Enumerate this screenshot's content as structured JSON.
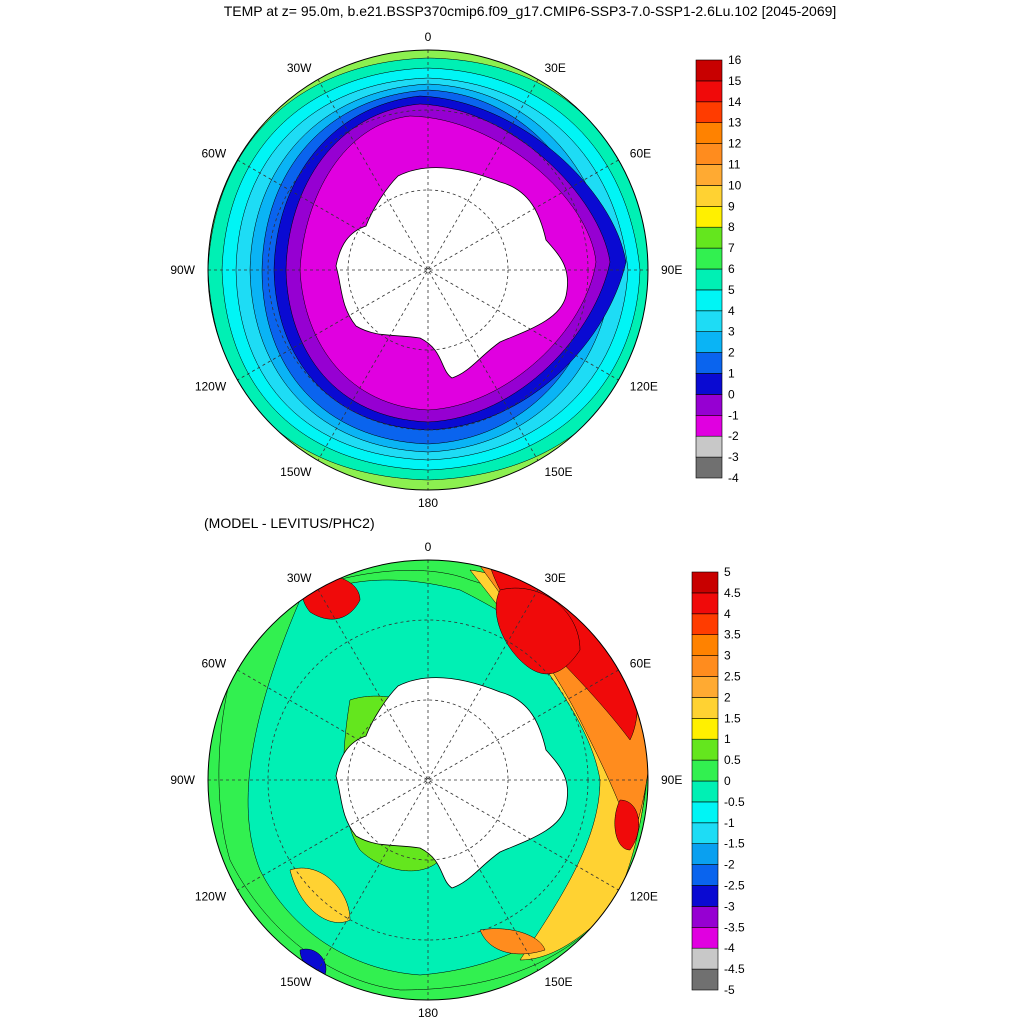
{
  "figure": {
    "title": "TEMP at z=  95.0m, b.e21.BSSP370cmip6.f09_g17.CMIP6-SSP3-7.0-SSP1-2.6Lu.102 [2045-2069]",
    "subtitle": "(MODEL - LEVITUS/PHC2)"
  },
  "longitude_labels": [
    "0",
    "30E",
    "60E",
    "90E",
    "120E",
    "150E",
    "180",
    "150W",
    "120W",
    "90W",
    "60W",
    "30W"
  ],
  "colorbar_top": {
    "colors": [
      "#707070",
      "#c8c8c8",
      "#e000e0",
      "#9600d2",
      "#0a0ad2",
      "#0a64ee",
      "#0ab4f5",
      "#1edcf5",
      "#00f5f5",
      "#00f0b4",
      "#32f050",
      "#64e61e",
      "#fff000",
      "#ffd232",
      "#ffaa32",
      "#ff8c1e",
      "#ff8200",
      "#ff3c00",
      "#f00a0a",
      "#c80000"
    ],
    "labels": [
      "-4",
      "-3",
      "-2",
      "-1",
      "0",
      "1",
      "2",
      "3",
      "4",
      "5",
      "6",
      "7",
      "8",
      "9",
      "10",
      "11",
      "12",
      "13",
      "14",
      "15",
      "16"
    ]
  },
  "colorbar_bottom": {
    "colors": [
      "#707070",
      "#c8c8c8",
      "#e000e0",
      "#9600d2",
      "#0a0ad2",
      "#0a64ee",
      "#0aa0f0",
      "#1edcf5",
      "#00f5f5",
      "#00f0b4",
      "#32f050",
      "#64e61e",
      "#fff000",
      "#ffd232",
      "#ffaa32",
      "#ff8c1e",
      "#ff8200",
      "#ff3c00",
      "#f00a0a",
      "#c80000"
    ],
    "labels": [
      "-5",
      "-4.5",
      "-4",
      "-3.5",
      "-3",
      "-2.5",
      "-2",
      "-1.5",
      "-1",
      "-0.5",
      "0",
      "0.5",
      "1",
      "1.5",
      "2",
      "2.5",
      "3",
      "3.5",
      "4",
      "4.5",
      "5"
    ]
  },
  "fill_colors": {
    "top_field": [
      "#8cf050",
      "#00f0b4",
      "#00f5f5",
      "#1edcf5",
      "#0ab4f5",
      "#0a64ee",
      "#0a0ad2",
      "#9600d2",
      "#e000e0"
    ],
    "bottom_field": [
      "#1edcf5",
      "#00f0b4",
      "#32f050",
      "#64e61e",
      "#fff000",
      "#ffd232",
      "#ff8c1e",
      "#f00a0a"
    ],
    "land": "#ffffff"
  }
}
